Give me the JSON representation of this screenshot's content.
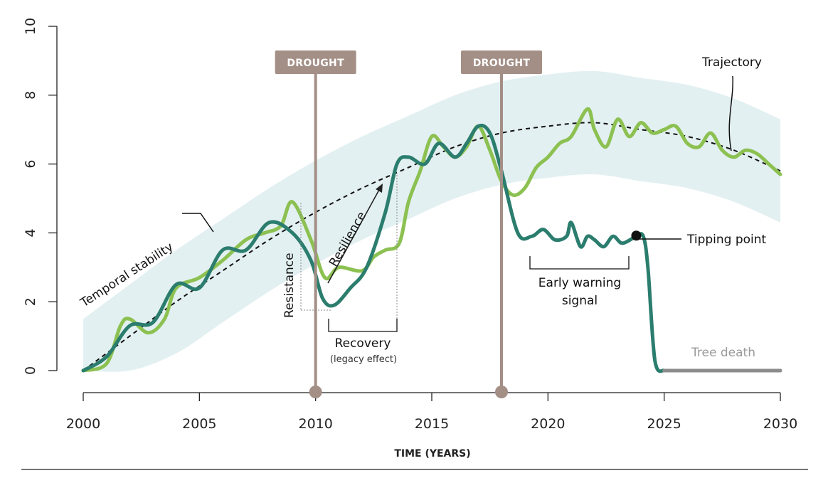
{
  "chart_data": {
    "type": "line",
    "xlabel": "TIME (YEARS)",
    "ylabel": "",
    "xlim": [
      2000,
      2030
    ],
    "ylim": [
      0,
      10
    ],
    "x_ticks": [
      "2000",
      "2005",
      "2010",
      "2015",
      "2020",
      "2025",
      "2030"
    ],
    "y_ticks": [
      "0",
      "2",
      "4",
      "6",
      "8",
      "10"
    ],
    "colors": {
      "band": "#e3f0f1",
      "light_green": "#8cc152",
      "dark_teal": "#2b7d6e",
      "drought": "#a38f86",
      "dead": "#8c8c8c",
      "trajectory": "#111111"
    },
    "trajectory": {
      "label": "Trajectory",
      "x": [
        2000,
        2002,
        2004,
        2006,
        2008,
        2010,
        2012,
        2014,
        2016,
        2018,
        2020,
        2022,
        2024,
        2026,
        2028,
        2030
      ],
      "y": [
        0.0,
        1.0,
        2.0,
        2.9,
        3.8,
        4.6,
        5.3,
        5.9,
        6.5,
        6.9,
        7.1,
        7.2,
        7.0,
        6.8,
        6.4,
        5.8
      ]
    },
    "band_halfwidth": 1.5,
    "series": [
      {
        "role": "resilient-tree",
        "x": [
          2000,
          2001,
          2001.6,
          2002,
          2002.8,
          2003.5,
          2004,
          2005,
          2006,
          2007,
          2007.8,
          2008.5,
          2009,
          2009.8,
          2010.4,
          2011,
          2012,
          2012.5,
          2013,
          2013.6,
          2014,
          2014.5,
          2015,
          2015.5,
          2016,
          2016.5,
          2017,
          2017.5,
          2018,
          2018.5,
          2019,
          2019.5,
          2020,
          2020.5,
          2021,
          2021.7,
          2022,
          2022.5,
          2023,
          2023.5,
          2024,
          2024.5,
          2025,
          2025.5,
          2026,
          2026.5,
          2027,
          2027.5,
          2028,
          2028.5,
          2029,
          2029.5,
          2030
        ],
        "y": [
          0.0,
          0.2,
          1.3,
          1.5,
          1.1,
          1.5,
          2.4,
          2.7,
          3.2,
          3.8,
          4.0,
          4.2,
          4.9,
          3.8,
          2.7,
          3.0,
          2.9,
          3.3,
          3.5,
          3.7,
          4.9,
          5.8,
          6.8,
          6.5,
          6.2,
          6.5,
          7.1,
          6.4,
          5.5,
          5.1,
          5.3,
          5.9,
          6.2,
          6.6,
          6.8,
          7.6,
          7.0,
          6.5,
          7.3,
          6.8,
          7.2,
          6.9,
          7.0,
          7.1,
          6.6,
          6.5,
          6.9,
          6.4,
          6.2,
          6.4,
          6.3,
          6.0,
          5.7
        ]
      },
      {
        "role": "dying-tree",
        "x": [
          2000,
          2001,
          2002,
          2003,
          2004,
          2005,
          2006,
          2007,
          2008,
          2009,
          2009.8,
          2010.3,
          2010.8,
          2011.5,
          2012.2,
          2013,
          2013.5,
          2014,
          2014.7,
          2015.3,
          2016,
          2016.5,
          2017,
          2017.5,
          2018,
          2018.7,
          2019.3,
          2019.8,
          2020.3,
          2020.8,
          2021,
          2021.4,
          2021.7,
          2022,
          2022.4,
          2022.8,
          2023.2,
          2023.8,
          2024.1,
          2024.3,
          2024.6,
          2025
        ],
        "y": [
          0.0,
          0.4,
          1.3,
          1.4,
          2.5,
          2.4,
          3.5,
          3.5,
          4.3,
          4.0,
          3.2,
          2.1,
          1.9,
          2.4,
          3.0,
          4.6,
          6.0,
          6.2,
          6.0,
          6.6,
          6.2,
          6.6,
          7.1,
          6.9,
          5.8,
          4.0,
          3.9,
          4.1,
          3.8,
          3.9,
          4.3,
          3.6,
          3.9,
          3.8,
          3.6,
          3.9,
          3.7,
          3.9,
          3.9,
          3.0,
          0.3,
          0.0
        ]
      },
      {
        "role": "dead",
        "x": [
          2025,
          2030
        ],
        "y": [
          0,
          0
        ]
      }
    ],
    "droughts": [
      {
        "x": 2010,
        "label": "DROUGHT"
      },
      {
        "x": 2018,
        "label": "DROUGHT"
      }
    ],
    "tipping_point": {
      "x": 2023.8,
      "y": 3.9,
      "label": "Tipping point"
    },
    "annotations": {
      "temporal_stability": "Temporal stability",
      "resistance": "Resistance",
      "resilience": "Resilience",
      "recovery": "Recovery",
      "recovery_sub": "(legacy effect)",
      "early_warning_1": "Early warning",
      "early_warning_2": "signal",
      "tree_death": "Tree death"
    }
  }
}
